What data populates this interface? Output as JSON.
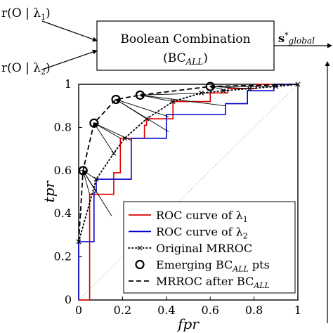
{
  "diagram": {
    "input1": "r(O | λ",
    "input1_sub": "1",
    "input2": "r(O | λ",
    "input2_sub": "2",
    "box_title": "Boolean Combination",
    "box_subtitle": "(BC",
    "box_subtitle_sub": "ALL",
    "output_label": "s",
    "output_sup": "*",
    "output_sub": "global"
  },
  "chart_data": {
    "type": "line",
    "xlabel": "fpr",
    "ylabel": "tpr",
    "xlim": [
      0,
      1
    ],
    "ylim": [
      0,
      1
    ],
    "xticks": [
      "0",
      "0.2",
      "0.4",
      "0.6",
      "0.8",
      "1"
    ],
    "yticks": [
      "0",
      "0.2",
      "0.4",
      "0.6",
      "0.8",
      "1"
    ],
    "grid": false,
    "legend_position": "bottom-right",
    "series": [
      {
        "name": "ROC curve of λ1",
        "color": "#dd0000",
        "style": "solid",
        "x": [
          0,
          0.05,
          0.05,
          0.16,
          0.16,
          0.19,
          0.19,
          0.3,
          0.3,
          0.31,
          0.31,
          0.43,
          0.43,
          0.6,
          0.6,
          0.68,
          0.68,
          0.81,
          0.81,
          0.96,
          1
        ],
        "y": [
          0,
          0,
          0.49,
          0.49,
          0.59,
          0.59,
          0.75,
          0.75,
          0.81,
          0.81,
          0.84,
          0.84,
          0.92,
          0.92,
          0.96,
          0.96,
          0.98,
          0.98,
          1,
          1,
          1
        ]
      },
      {
        "name": "ROC curve of λ2",
        "color": "#0000cc",
        "style": "solid",
        "x": [
          0,
          0,
          0.07,
          0.07,
          0.08,
          0.08,
          0.24,
          0.24,
          0.4,
          0.4,
          0.67,
          0.67,
          0.77,
          0.77,
          0.89,
          0.89,
          0.99,
          1
        ],
        "y": [
          0,
          0.27,
          0.27,
          0.5,
          0.5,
          0.56,
          0.56,
          0.75,
          0.75,
          0.86,
          0.86,
          0.91,
          0.91,
          0.97,
          0.97,
          1,
          1,
          1
        ]
      },
      {
        "name": "Original MRROC",
        "color": "#000000",
        "style": "dotted-x",
        "x": [
          0,
          0.08,
          0.16,
          0.21,
          0.31,
          0.43,
          0.56,
          0.66,
          0.78,
          0.9,
          1
        ],
        "y": [
          0.27,
          0.56,
          0.68,
          0.75,
          0.84,
          0.92,
          0.96,
          0.97,
          0.98,
          0.99,
          1
        ]
      },
      {
        "name": "Emerging BC_ALL pts",
        "color": "#000000",
        "style": "circle-marker",
        "x": [
          0.02,
          0.07,
          0.17,
          0.28,
          0.6
        ],
        "y": [
          0.6,
          0.82,
          0.93,
          0.95,
          0.99
        ]
      },
      {
        "name": "MRROC after BC_ALL",
        "color": "#000000",
        "style": "dashed",
        "x": [
          0,
          0.02,
          0.07,
          0.17,
          0.28,
          0.6,
          1
        ],
        "y": [
          0.27,
          0.6,
          0.82,
          0.93,
          0.95,
          0.99,
          1
        ]
      }
    ],
    "chance_line": {
      "x": [
        0,
        1
      ],
      "y": [
        0,
        1
      ],
      "color": "#bbbbbb"
    },
    "arrows": [
      {
        "from": [
          0.05,
          0.49
        ],
        "to": [
          0.02,
          0.6
        ]
      },
      {
        "from": [
          0.08,
          0.5
        ],
        "to": [
          0.02,
          0.6
        ]
      },
      {
        "from": [
          0.08,
          0.56
        ],
        "to": [
          0.02,
          0.6
        ]
      },
      {
        "from": [
          0.15,
          0.39
        ],
        "to": [
          0.02,
          0.6
        ]
      },
      {
        "from": [
          0.16,
          0.68
        ],
        "to": [
          0.07,
          0.82
        ]
      },
      {
        "from": [
          0.19,
          0.75
        ],
        "to": [
          0.07,
          0.82
        ]
      },
      {
        "from": [
          0.24,
          0.74
        ],
        "to": [
          0.07,
          0.82
        ]
      },
      {
        "from": [
          0.31,
          0.84
        ],
        "to": [
          0.17,
          0.93
        ]
      },
      {
        "from": [
          0.41,
          0.78
        ],
        "to": [
          0.17,
          0.93
        ]
      },
      {
        "from": [
          0.41,
          0.85
        ],
        "to": [
          0.17,
          0.93
        ]
      },
      {
        "from": [
          0.43,
          0.92
        ],
        "to": [
          0.28,
          0.95
        ]
      },
      {
        "from": [
          0.6,
          0.96
        ],
        "to": [
          0.28,
          0.95
        ]
      },
      {
        "from": [
          0.67,
          0.9
        ],
        "to": [
          0.28,
          0.95
        ]
      },
      {
        "from": [
          0.68,
          0.97
        ],
        "to": [
          0.6,
          0.99
        ]
      },
      {
        "from": [
          0.78,
          0.98
        ],
        "to": [
          0.6,
          0.99
        ]
      },
      {
        "from": [
          0.81,
          0.99
        ],
        "to": [
          0.6,
          0.99
        ]
      },
      {
        "from": [
          0.89,
          0.99
        ],
        "to": [
          0.6,
          0.99
        ]
      },
      {
        "from": [
          0.9,
          0.99
        ],
        "to": [
          0.6,
          0.99
        ]
      }
    ],
    "legend": [
      {
        "text": "ROC curve of λ",
        "sub": "1",
        "color": "#dd0000",
        "style": "solid"
      },
      {
        "text": "ROC curve of λ",
        "sub": "2",
        "color": "#0000cc",
        "style": "solid"
      },
      {
        "text": "Original MRROC",
        "sub": "",
        "color": "#000000",
        "style": "dotted-x"
      },
      {
        "text": "Emerging BC",
        "sub": "ALL",
        "tail": " pts",
        "color": "#000000",
        "style": "circle-marker"
      },
      {
        "text": "MRROC after BC",
        "sub": "ALL",
        "color": "#000000",
        "style": "dashed"
      }
    ]
  }
}
